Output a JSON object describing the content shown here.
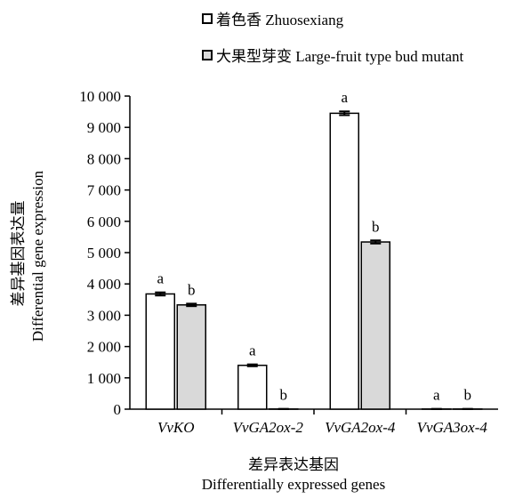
{
  "legend": [
    {
      "label": "着色香 Zhuosexiang",
      "color": "#ffffff"
    },
    {
      "label": "大果型芽变 Large-fruit type bud mutant",
      "color": "#d9d9d9"
    }
  ],
  "axes": {
    "ylabel_zh": "差异基因表达量",
    "ylabel_en": "Differential gene expression",
    "xlabel_zh": "差异表达基因",
    "xlabel_en": "Differentially expressed genes"
  },
  "chart_data": {
    "type": "bar",
    "categories": [
      "VvKO",
      "VvGA2ox-2",
      "VvGA2ox-4",
      "VvGA3ox-4"
    ],
    "series": [
      {
        "name": "着色香 Zhuosexiang",
        "color": "#ffffff",
        "values": [
          3680,
          1400,
          9450,
          5
        ],
        "errors": [
          50,
          30,
          60,
          5
        ],
        "labels": [
          "a",
          "a",
          "a",
          "a"
        ]
      },
      {
        "name": "大果型芽变 Large-fruit type bud mutant",
        "color": "#d9d9d9",
        "values": [
          3330,
          5,
          5340,
          5
        ],
        "errors": [
          40,
          5,
          50,
          5
        ],
        "labels": [
          "b",
          "b",
          "b",
          "b"
        ]
      }
    ],
    "ylim": [
      0,
      10000
    ],
    "yticks": [
      0,
      1000,
      2000,
      3000,
      4000,
      5000,
      6000,
      7000,
      8000,
      9000,
      10000
    ],
    "ytick_labels": [
      "0",
      "1 000",
      "2 000",
      "3 000",
      "4 000",
      "5 000",
      "6 000",
      "7 000",
      "8 000",
      "9 000",
      "10 000"
    ],
    "grid": false,
    "legend_position": "top"
  }
}
